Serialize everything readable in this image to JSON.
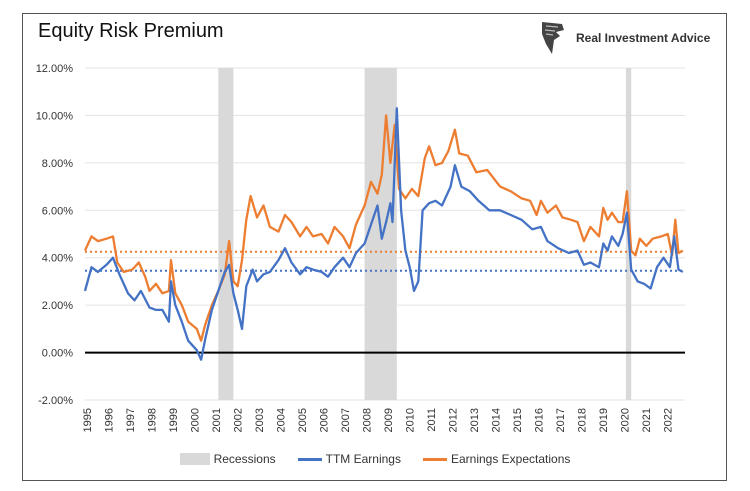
{
  "chart_data": {
    "type": "line",
    "title": "Equity Risk Premium",
    "brand": "Real Investment Advice",
    "xlabel": "",
    "ylabel": "",
    "ylim": [
      -2,
      12
    ],
    "xlim": [
      1995,
      2022.9
    ],
    "y_ticks": [
      "-2.00%",
      "0.00%",
      "2.00%",
      "4.00%",
      "6.00%",
      "8.00%",
      "10.00%",
      "12.00%"
    ],
    "y_tick_values": [
      -2,
      0,
      2,
      4,
      6,
      8,
      10,
      12
    ],
    "x_ticks": [
      "1995",
      "1996",
      "1997",
      "1998",
      "1999",
      "2000",
      "2001",
      "2002",
      "2003",
      "2004",
      "2005",
      "2006",
      "2007",
      "2008",
      "2009",
      "2010",
      "2011",
      "2012",
      "2013",
      "2014",
      "2015",
      "2016",
      "2017",
      "2018",
      "2019",
      "2020",
      "2021",
      "2022"
    ],
    "grid": true,
    "legend_position": "bottom",
    "recessions": [
      [
        2001.2,
        2001.9
      ],
      [
        2008.0,
        2009.5
      ],
      [
        2020.15,
        2020.4
      ]
    ],
    "legend": {
      "recessions": "Recessions",
      "ttm": "TTM Earnings",
      "exp": "Earnings Expectations"
    },
    "colors": {
      "ttm": "#4472C4",
      "exp": "#ED7D31",
      "recession": "#D9D9D9"
    },
    "series": [
      {
        "name": "TTM Earnings",
        "average": 3.45,
        "points": [
          [
            1995.0,
            2.6
          ],
          [
            1995.3,
            3.6
          ],
          [
            1995.6,
            3.4
          ],
          [
            1996.0,
            3.7
          ],
          [
            1996.3,
            4.0
          ],
          [
            1996.6,
            3.3
          ],
          [
            1997.0,
            2.5
          ],
          [
            1997.3,
            2.2
          ],
          [
            1997.6,
            2.6
          ],
          [
            1998.0,
            1.9
          ],
          [
            1998.3,
            1.8
          ],
          [
            1998.6,
            1.8
          ],
          [
            1998.9,
            1.3
          ],
          [
            1999.0,
            3.0
          ],
          [
            1999.2,
            2.0
          ],
          [
            1999.5,
            1.3
          ],
          [
            1999.8,
            0.5
          ],
          [
            2000.2,
            0.1
          ],
          [
            2000.4,
            -0.3
          ],
          [
            2000.6,
            0.6
          ],
          [
            2000.9,
            1.8
          ],
          [
            2001.2,
            2.6
          ],
          [
            2001.5,
            3.4
          ],
          [
            2001.7,
            3.7
          ],
          [
            2001.9,
            2.5
          ],
          [
            2002.1,
            1.8
          ],
          [
            2002.3,
            1.0
          ],
          [
            2002.5,
            2.8
          ],
          [
            2002.8,
            3.5
          ],
          [
            2003.0,
            3.0
          ],
          [
            2003.3,
            3.3
          ],
          [
            2003.6,
            3.4
          ],
          [
            2004.0,
            3.9
          ],
          [
            2004.3,
            4.4
          ],
          [
            2004.6,
            3.8
          ],
          [
            2005.0,
            3.3
          ],
          [
            2005.3,
            3.6
          ],
          [
            2005.6,
            3.5
          ],
          [
            2006.0,
            3.4
          ],
          [
            2006.3,
            3.2
          ],
          [
            2006.6,
            3.6
          ],
          [
            2007.0,
            4.0
          ],
          [
            2007.3,
            3.6
          ],
          [
            2007.6,
            4.2
          ],
          [
            2008.0,
            4.6
          ],
          [
            2008.3,
            5.4
          ],
          [
            2008.6,
            6.2
          ],
          [
            2008.8,
            4.8
          ],
          [
            2009.0,
            5.5
          ],
          [
            2009.2,
            6.3
          ],
          [
            2009.3,
            5.5
          ],
          [
            2009.5,
            10.3
          ],
          [
            2009.7,
            6.0
          ],
          [
            2009.9,
            4.3
          ],
          [
            2010.1,
            3.6
          ],
          [
            2010.3,
            2.6
          ],
          [
            2010.5,
            3.0
          ],
          [
            2010.7,
            6.0
          ],
          [
            2011.0,
            6.3
          ],
          [
            2011.3,
            6.4
          ],
          [
            2011.6,
            6.2
          ],
          [
            2012.0,
            7.0
          ],
          [
            2012.2,
            7.9
          ],
          [
            2012.5,
            7.0
          ],
          [
            2012.9,
            6.8
          ],
          [
            2013.3,
            6.4
          ],
          [
            2013.8,
            6.0
          ],
          [
            2014.3,
            6.0
          ],
          [
            2014.8,
            5.8
          ],
          [
            2015.3,
            5.6
          ],
          [
            2015.8,
            5.2
          ],
          [
            2016.2,
            5.3
          ],
          [
            2016.5,
            4.7
          ],
          [
            2017.0,
            4.4
          ],
          [
            2017.5,
            4.2
          ],
          [
            2017.9,
            4.3
          ],
          [
            2018.2,
            3.7
          ],
          [
            2018.5,
            3.8
          ],
          [
            2018.9,
            3.6
          ],
          [
            2019.1,
            4.6
          ],
          [
            2019.3,
            4.3
          ],
          [
            2019.5,
            4.9
          ],
          [
            2019.8,
            4.5
          ],
          [
            2020.0,
            5.0
          ],
          [
            2020.2,
            5.9
          ],
          [
            2020.4,
            3.5
          ],
          [
            2020.7,
            3.0
          ],
          [
            2021.0,
            2.9
          ],
          [
            2021.3,
            2.7
          ],
          [
            2021.6,
            3.6
          ],
          [
            2021.9,
            4.0
          ],
          [
            2022.2,
            3.6
          ],
          [
            2022.4,
            4.9
          ],
          [
            2022.6,
            3.5
          ],
          [
            2022.8,
            3.4
          ]
        ]
      },
      {
        "name": "Earnings Expectations",
        "average": 4.25,
        "points": [
          [
            1995.0,
            4.3
          ],
          [
            1995.3,
            4.9
          ],
          [
            1995.6,
            4.7
          ],
          [
            1996.0,
            4.8
          ],
          [
            1996.3,
            4.9
          ],
          [
            1996.5,
            3.8
          ],
          [
            1996.8,
            3.4
          ],
          [
            1997.2,
            3.5
          ],
          [
            1997.5,
            3.8
          ],
          [
            1997.8,
            3.2
          ],
          [
            1998.0,
            2.6
          ],
          [
            1998.3,
            2.9
          ],
          [
            1998.6,
            2.5
          ],
          [
            1998.9,
            2.6
          ],
          [
            1999.0,
            3.9
          ],
          [
            1999.2,
            2.5
          ],
          [
            1999.5,
            2.0
          ],
          [
            1999.8,
            1.3
          ],
          [
            2000.2,
            1.0
          ],
          [
            2000.4,
            0.5
          ],
          [
            2000.6,
            1.2
          ],
          [
            2000.9,
            2.0
          ],
          [
            2001.2,
            2.6
          ],
          [
            2001.5,
            3.3
          ],
          [
            2001.7,
            4.7
          ],
          [
            2001.9,
            3.0
          ],
          [
            2002.1,
            2.8
          ],
          [
            2002.3,
            3.9
          ],
          [
            2002.5,
            5.6
          ],
          [
            2002.7,
            6.6
          ],
          [
            2003.0,
            5.7
          ],
          [
            2003.3,
            6.2
          ],
          [
            2003.6,
            5.3
          ],
          [
            2004.0,
            5.1
          ],
          [
            2004.3,
            5.8
          ],
          [
            2004.6,
            5.5
          ],
          [
            2005.0,
            4.9
          ],
          [
            2005.3,
            5.3
          ],
          [
            2005.6,
            4.9
          ],
          [
            2006.0,
            5.0
          ],
          [
            2006.3,
            4.6
          ],
          [
            2006.6,
            5.3
          ],
          [
            2007.0,
            4.9
          ],
          [
            2007.3,
            4.4
          ],
          [
            2007.6,
            5.4
          ],
          [
            2008.0,
            6.2
          ],
          [
            2008.3,
            7.2
          ],
          [
            2008.6,
            6.7
          ],
          [
            2008.8,
            7.5
          ],
          [
            2009.0,
            10.0
          ],
          [
            2009.2,
            8.0
          ],
          [
            2009.4,
            9.6
          ],
          [
            2009.6,
            6.9
          ],
          [
            2009.9,
            6.5
          ],
          [
            2010.2,
            6.9
          ],
          [
            2010.5,
            6.6
          ],
          [
            2010.8,
            8.2
          ],
          [
            2011.0,
            8.7
          ],
          [
            2011.3,
            7.9
          ],
          [
            2011.6,
            8.0
          ],
          [
            2011.9,
            8.5
          ],
          [
            2012.2,
            9.4
          ],
          [
            2012.4,
            8.4
          ],
          [
            2012.8,
            8.3
          ],
          [
            2013.2,
            7.6
          ],
          [
            2013.7,
            7.7
          ],
          [
            2014.3,
            7.0
          ],
          [
            2014.8,
            6.8
          ],
          [
            2015.3,
            6.5
          ],
          [
            2015.7,
            6.4
          ],
          [
            2016.0,
            5.8
          ],
          [
            2016.2,
            6.4
          ],
          [
            2016.5,
            5.9
          ],
          [
            2016.9,
            6.2
          ],
          [
            2017.2,
            5.7
          ],
          [
            2017.6,
            5.6
          ],
          [
            2017.9,
            5.5
          ],
          [
            2018.2,
            4.7
          ],
          [
            2018.5,
            5.3
          ],
          [
            2018.9,
            4.9
          ],
          [
            2019.1,
            6.1
          ],
          [
            2019.3,
            5.6
          ],
          [
            2019.5,
            5.9
          ],
          [
            2019.8,
            5.5
          ],
          [
            2020.0,
            5.5
          ],
          [
            2020.2,
            6.8
          ],
          [
            2020.4,
            4.3
          ],
          [
            2020.6,
            4.1
          ],
          [
            2020.8,
            4.8
          ],
          [
            2021.1,
            4.5
          ],
          [
            2021.4,
            4.8
          ],
          [
            2021.8,
            4.9
          ],
          [
            2022.1,
            5.0
          ],
          [
            2022.3,
            4.1
          ],
          [
            2022.45,
            5.6
          ],
          [
            2022.6,
            4.2
          ],
          [
            2022.8,
            4.3
          ]
        ]
      }
    ]
  }
}
